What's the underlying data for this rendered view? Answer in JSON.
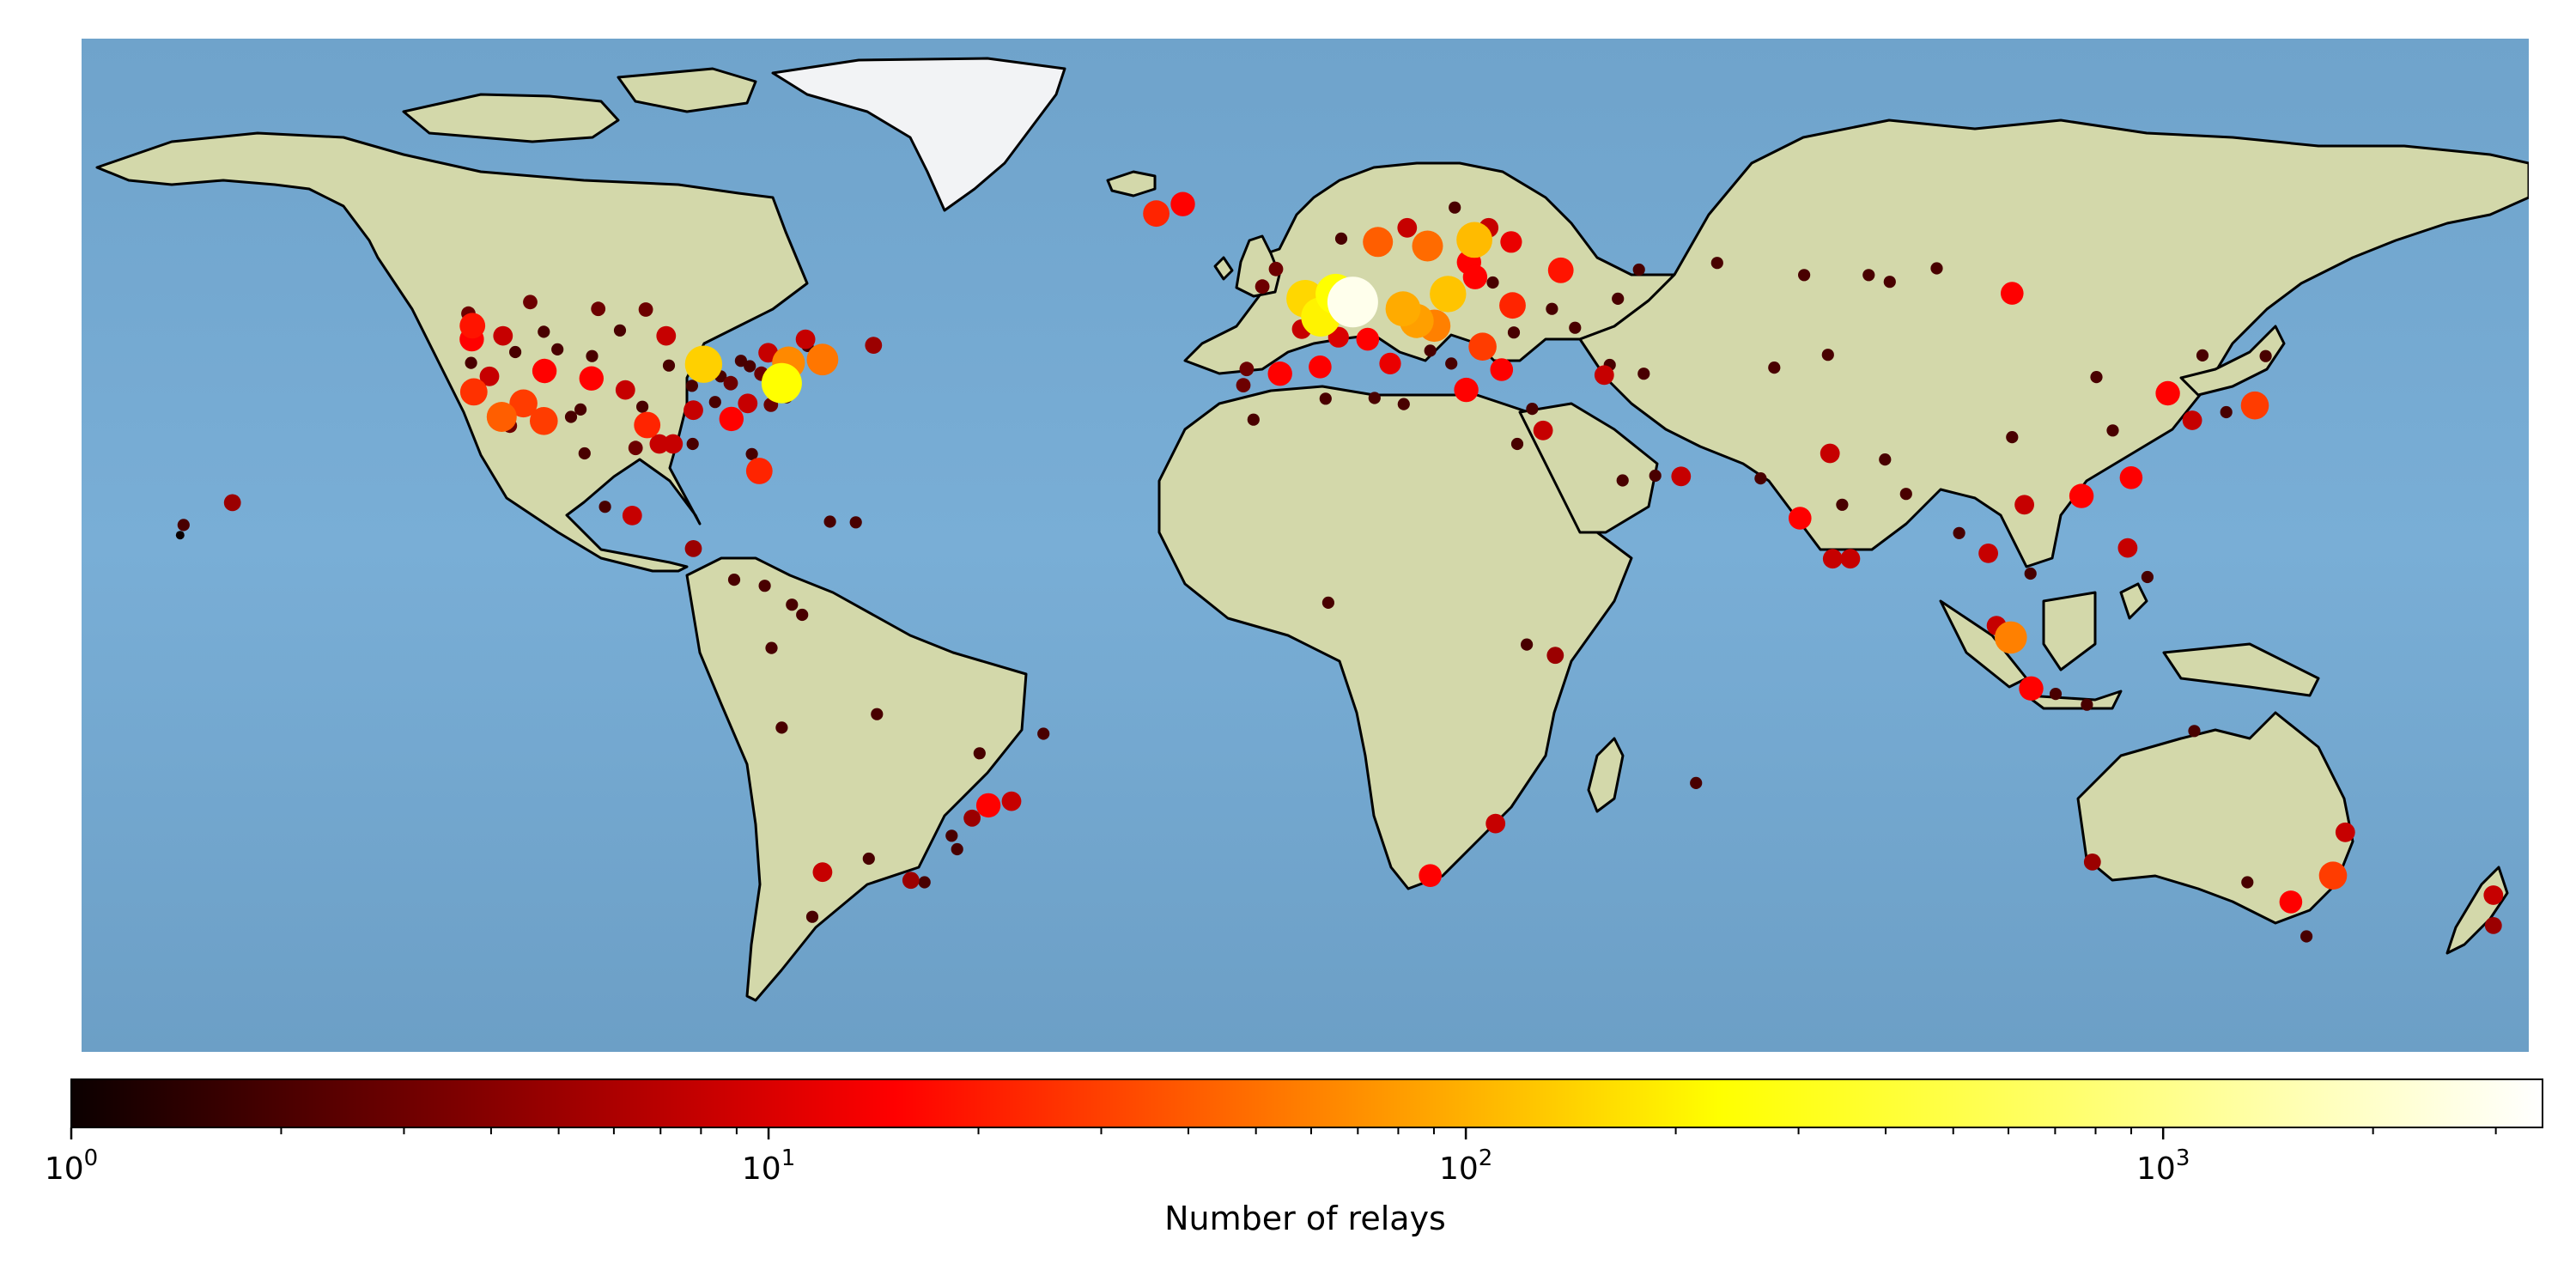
{
  "chart_data": {
    "type": "scatter",
    "title": "",
    "projection": "plate-carree",
    "extent": {
      "lon": [
        -180,
        180
      ],
      "lat": [
        -60,
        90
      ]
    },
    "colormap": "hot",
    "color_scale": "log",
    "colorbar": {
      "label": "Number of relays",
      "range": [
        1,
        3500
      ],
      "ticks": [
        {
          "value": 1,
          "base": "10",
          "exp": "0"
        },
        {
          "value": 10,
          "base": "10",
          "exp": "1"
        },
        {
          "value": 100,
          "base": "10",
          "exp": "2"
        },
        {
          "value": 1000,
          "base": "10",
          "exp": "3"
        }
      ]
    },
    "points": [
      {
        "lon": 7,
        "lat": 51,
        "relays": 3000
      },
      {
        "lon": 4.5,
        "lat": 52.2,
        "relays": 420
      },
      {
        "lon": 2.3,
        "lat": 48.8,
        "relays": 350
      },
      {
        "lon": 0,
        "lat": 51.5,
        "relays": 250
      },
      {
        "lon": -77,
        "lat": 39,
        "relays": 420
      },
      {
        "lon": -88.5,
        "lat": 41.8,
        "relays": 230
      },
      {
        "lon": -76,
        "lat": 42,
        "relays": 100
      },
      {
        "lon": -71,
        "lat": 42.5,
        "relays": 80
      },
      {
        "lon": 18,
        "lat": 59.3,
        "relays": 70
      },
      {
        "lon": 10.7,
        "lat": 59.9,
        "relays": 60
      },
      {
        "lon": 24.9,
        "lat": 60.2,
        "relays": 180
      },
      {
        "lon": 21,
        "lat": 52.2,
        "relays": 200
      },
      {
        "lon": 14.4,
        "lat": 50,
        "relays": 150
      },
      {
        "lon": 16.4,
        "lat": 48.2,
        "relays": 130
      },
      {
        "lon": 19,
        "lat": 47.5,
        "relays": 90
      },
      {
        "lon": 26.1,
        "lat": 44.4,
        "relays": 40
      },
      {
        "lon": 30.5,
        "lat": 50.5,
        "relays": 30
      },
      {
        "lon": 37.6,
        "lat": 55.7,
        "relays": 25
      },
      {
        "lon": 103.8,
        "lat": 1.35,
        "relays": 90
      },
      {
        "lon": -118.2,
        "lat": 34,
        "relays": 60
      },
      {
        "lon": -122.3,
        "lat": 37.7,
        "relays": 35
      },
      {
        "lon": -122.5,
        "lat": 47.5,
        "relays": 25
      },
      {
        "lon": -122.6,
        "lat": 45.5,
        "relays": 20
      },
      {
        "lon": -115,
        "lat": 36,
        "relays": 40
      },
      {
        "lon": -112,
        "lat": 33.4,
        "relays": 40
      },
      {
        "lon": -96.8,
        "lat": 32.8,
        "relays": 30
      },
      {
        "lon": -80.3,
        "lat": 26,
        "relays": 30
      },
      {
        "lon": -84.4,
        "lat": 33.7,
        "relays": 20
      },
      {
        "lon": -105,
        "lat": 39.7,
        "relays": 20
      },
      {
        "lon": -111.9,
        "lat": 40.8,
        "relays": 20
      },
      {
        "lon": -21.9,
        "lat": 64.1,
        "relays": 30
      },
      {
        "lon": -18,
        "lat": 65.5,
        "relays": 20
      },
      {
        "lon": 24.1,
        "lat": 56.9,
        "relays": 20
      },
      {
        "lon": 25,
        "lat": 54.7,
        "relays": 20
      },
      {
        "lon": -3.7,
        "lat": 40.4,
        "relays": 20
      },
      {
        "lon": 2.2,
        "lat": 41.4,
        "relays": 15
      },
      {
        "lon": 12.5,
        "lat": 41.9,
        "relays": 12
      },
      {
        "lon": 9.2,
        "lat": 45.5,
        "relays": 15
      },
      {
        "lon": 23.7,
        "lat": 38,
        "relays": 20
      },
      {
        "lon": 139.7,
        "lat": 35.7,
        "relays": 40
      },
      {
        "lon": 126.9,
        "lat": 37.5,
        "relays": 20
      },
      {
        "lon": 114.2,
        "lat": 22.3,
        "relays": 20
      },
      {
        "lon": 121.5,
        "lat": 25,
        "relays": 15
      },
      {
        "lon": 106.8,
        "lat": -6.2,
        "relays": 20
      },
      {
        "lon": 151.2,
        "lat": -33.9,
        "relays": 40
      },
      {
        "lon": 145,
        "lat": -37.8,
        "relays": 15
      },
      {
        "lon": -46.6,
        "lat": -23.5,
        "relays": 20
      },
      {
        "lon": 18.4,
        "lat": -33.9,
        "relays": 15
      },
      {
        "lon": 72.8,
        "lat": 19,
        "relays": 15
      },
      {
        "lon": 104,
        "lat": 52.3,
        "relays": 15
      },
      {
        "lon": 28.9,
        "lat": 41,
        "relays": 15
      },
      {
        "lon": 30.3,
        "lat": 59.9,
        "relays": 12
      },
      {
        "lon": 4.9,
        "lat": 45.8,
        "relays": 10
      },
      {
        "lon": -0.5,
        "lat": 47,
        "relays": 8
      },
      {
        "lon": 15,
        "lat": 62,
        "relays": 8
      },
      {
        "lon": 27,
        "lat": 62,
        "relays": 8
      },
      {
        "lon": -94,
        "lat": 46,
        "relays": 8
      },
      {
        "lon": -95,
        "lat": 30,
        "relays": 8
      },
      {
        "lon": -90,
        "lat": 35,
        "relays": 8
      },
      {
        "lon": -100,
        "lat": 38,
        "relays": 8
      },
      {
        "lon": -118,
        "lat": 46,
        "relays": 8
      },
      {
        "lon": -120,
        "lat": 40,
        "relays": 8
      },
      {
        "lon": -82,
        "lat": 36,
        "relays": 8
      },
      {
        "lon": -93,
        "lat": 30,
        "relays": 8
      },
      {
        "lon": -99,
        "lat": 19.4,
        "relays": 8
      },
      {
        "lon": -90,
        "lat": 14.5,
        "relays": 5
      },
      {
        "lon": -79,
        "lat": 43.5,
        "relays": 8
      },
      {
        "lon": -73.5,
        "lat": 45.5,
        "relays": 8
      },
      {
        "lon": -63.5,
        "lat": 44.6,
        "relays": 5
      },
      {
        "lon": -71,
        "lat": -33.4,
        "relays": 8
      },
      {
        "lon": -58,
        "lat": -34.6,
        "relays": 5
      },
      {
        "lon": -43.2,
        "lat": -22.9,
        "relays": 8
      },
      {
        "lon": -49,
        "lat": -25.4,
        "relays": 5
      },
      {
        "lon": 28,
        "lat": -26.2,
        "relays": 8
      },
      {
        "lon": 36.8,
        "lat": -1.3,
        "relays": 5
      },
      {
        "lon": 35,
        "lat": 32,
        "relays": 8
      },
      {
        "lon": 44,
        "lat": 40.2,
        "relays": 8
      },
      {
        "lon": 55.3,
        "lat": 25.2,
        "relays": 8
      },
      {
        "lon": 77.2,
        "lat": 28.6,
        "relays": 8
      },
      {
        "lon": 80.2,
        "lat": 13,
        "relays": 8
      },
      {
        "lon": 77.6,
        "lat": 13,
        "relays": 8
      },
      {
        "lon": 100.5,
        "lat": 13.8,
        "relays": 8
      },
      {
        "lon": 105.8,
        "lat": 21,
        "relays": 8
      },
      {
        "lon": 121,
        "lat": 14.6,
        "relays": 8
      },
      {
        "lon": 130.5,
        "lat": 33.5,
        "relays": 8
      },
      {
        "lon": 101.7,
        "lat": 3.1,
        "relays": 8
      },
      {
        "lon": 115.8,
        "lat": -31.9,
        "relays": 5
      },
      {
        "lon": 153,
        "lat": -27.5,
        "relays": 8
      },
      {
        "lon": 174.8,
        "lat": -36.8,
        "relays": 8
      },
      {
        "lon": 174.8,
        "lat": -41.3,
        "relays": 5
      },
      {
        "lon": -157.8,
        "lat": 21.3,
        "relays": 5
      },
      {
        "lon": -123.1,
        "lat": 49.3,
        "relays": 3
      },
      {
        "lon": -114,
        "lat": 51,
        "relays": 3
      },
      {
        "lon": -104,
        "lat": 50,
        "relays": 3
      },
      {
        "lon": -97,
        "lat": 49.9,
        "relays": 3
      },
      {
        "lon": -110,
        "lat": 44,
        "relays": 2
      },
      {
        "lon": -108,
        "lat": 34,
        "relays": 2
      },
      {
        "lon": -97.5,
        "lat": 35.5,
        "relays": 2
      },
      {
        "lon": -86,
        "lat": 40,
        "relays": 2
      },
      {
        "lon": -84.5,
        "lat": 39,
        "relays": 3
      },
      {
        "lon": -86.8,
        "lat": 36.2,
        "relays": 2
      },
      {
        "lon": -83,
        "lat": 42.3,
        "relays": 2
      },
      {
        "lon": -80,
        "lat": 40.4,
        "relays": 3
      },
      {
        "lon": -81.7,
        "lat": 41.5,
        "relays": 2
      },
      {
        "lon": -78.6,
        "lat": 35.8,
        "relays": 3
      },
      {
        "lon": -76.3,
        "lat": 36.9,
        "relays": 2
      },
      {
        "lon": -73.2,
        "lat": 44.5,
        "relays": 2
      },
      {
        "lon": -104.9,
        "lat": 43,
        "relays": 2
      },
      {
        "lon": -117,
        "lat": 32.7,
        "relays": 3
      },
      {
        "lon": -90.2,
        "lat": 38.6,
        "relays": 2
      },
      {
        "lon": -90.1,
        "lat": 30,
        "relays": 2
      },
      {
        "lon": -81.4,
        "lat": 28.5,
        "relays": 2
      },
      {
        "lon": -122.7,
        "lat": 42,
        "relays": 2
      },
      {
        "lon": -116.2,
        "lat": 43.6,
        "relays": 2
      },
      {
        "lon": -106.6,
        "lat": 35.1,
        "relays": 2
      },
      {
        "lon": -89.4,
        "lat": 43.1,
        "relays": 2
      },
      {
        "lon": -93.6,
        "lat": 41.6,
        "relays": 2
      },
      {
        "lon": -112,
        "lat": 46.6,
        "relays": 2
      },
      {
        "lon": -100.8,
        "lat": 46.8,
        "relays": 2
      },
      {
        "lon": -97,
        "lat": 32,
        "relays": 2
      },
      {
        "lon": -98.5,
        "lat": 29.4,
        "relays": 3
      },
      {
        "lon": -106,
        "lat": 28.6,
        "relays": 2
      },
      {
        "lon": -103,
        "lat": 20.7,
        "relays": 2
      },
      {
        "lon": -84,
        "lat": 9.9,
        "relays": 2
      },
      {
        "lon": -75.5,
        "lat": 6.2,
        "relays": 2
      },
      {
        "lon": -74,
        "lat": 4.7,
        "relays": 2
      },
      {
        "lon": -79.5,
        "lat": 9,
        "relays": 2
      },
      {
        "lon": -78.5,
        "lat": -0.2,
        "relays": 2
      },
      {
        "lon": -77,
        "lat": -12,
        "relays": 2
      },
      {
        "lon": -56,
        "lat": -34.9,
        "relays": 2
      },
      {
        "lon": -64.2,
        "lat": -31.4,
        "relays": 2
      },
      {
        "lon": -72.5,
        "lat": -40,
        "relays": 2
      },
      {
        "lon": -63,
        "lat": -10,
        "relays": 2
      },
      {
        "lon": -47.9,
        "lat": -15.8,
        "relays": 2
      },
      {
        "lon": -38.5,
        "lat": -12.9,
        "relays": 2
      },
      {
        "lon": -51.2,
        "lat": -30,
        "relays": 2
      },
      {
        "lon": -52,
        "lat": -28,
        "relays": 2
      },
      {
        "lon": 3.4,
        "lat": 6.5,
        "relays": 2
      },
      {
        "lon": 32.6,
        "lat": 0.3,
        "relays": 2
      },
      {
        "lon": 57.5,
        "lat": -20.2,
        "relays": 2
      },
      {
        "lon": 31.2,
        "lat": 30,
        "relays": 2
      },
      {
        "lon": 46.7,
        "lat": 24.6,
        "relays": 2
      },
      {
        "lon": 51.5,
        "lat": 25.3,
        "relays": 2
      },
      {
        "lon": 69,
        "lat": 41.3,
        "relays": 2
      },
      {
        "lon": 76.9,
        "lat": 43.2,
        "relays": 2
      },
      {
        "lon": 82.9,
        "lat": 55,
        "relays": 2
      },
      {
        "lon": 73.4,
        "lat": 55,
        "relays": 2
      },
      {
        "lon": 86,
        "lat": 54,
        "relays": 2
      },
      {
        "lon": 92.9,
        "lat": 56,
        "relays": 2
      },
      {
        "lon": 104,
        "lat": 31,
        "relays": 2
      },
      {
        "lon": 116.4,
        "lat": 39.9,
        "relays": 2
      },
      {
        "lon": 118.8,
        "lat": 32,
        "relays": 2
      },
      {
        "lon": 88.4,
        "lat": 22.6,
        "relays": 2
      },
      {
        "lon": 85.3,
        "lat": 27.7,
        "relays": 2
      },
      {
        "lon": 67,
        "lat": 24.9,
        "relays": 2
      },
      {
        "lon": 79,
        "lat": 21,
        "relays": 2
      },
      {
        "lon": 96.2,
        "lat": 16.8,
        "relays": 2
      },
      {
        "lon": 106.7,
        "lat": 10.8,
        "relays": 2
      },
      {
        "lon": 110.4,
        "lat": -7,
        "relays": 2
      },
      {
        "lon": 123.9,
        "lat": 10.3,
        "relays": 2
      },
      {
        "lon": 115,
        "lat": -8.6,
        "relays": 2
      },
      {
        "lon": 138.6,
        "lat": -34.9,
        "relays": 2
      },
      {
        "lon": 147.3,
        "lat": -42.9,
        "relays": 2
      },
      {
        "lon": 130.8,
        "lat": -12.5,
        "relays": 2
      },
      {
        "lon": 132,
        "lat": 43.1,
        "relays": 2
      },
      {
        "lon": 141.3,
        "lat": 43,
        "relays": 2
      },
      {
        "lon": 135.5,
        "lat": 34.7,
        "relays": 2
      },
      {
        "lon": 49.8,
        "lat": 40.4,
        "relays": 2
      },
      {
        "lon": 44.8,
        "lat": 41.7,
        "relays": 2
      },
      {
        "lon": 39.7,
        "lat": 47.2,
        "relays": 2
      },
      {
        "lon": 49.1,
        "lat": 55.8,
        "relays": 2
      },
      {
        "lon": 60.6,
        "lat": 56.8,
        "relays": 2
      },
      {
        "lon": 27.6,
        "lat": 53.9,
        "relays": 2
      },
      {
        "lon": 22,
        "lat": 65,
        "relays": 2
      },
      {
        "lon": 5.3,
        "lat": 60.4,
        "relays": 2
      },
      {
        "lon": -8.6,
        "lat": 41.1,
        "relays": 3
      },
      {
        "lon": -9.1,
        "lat": 38.7,
        "relays": 3
      },
      {
        "lon": -6.3,
        "lat": 53.3,
        "relays": 3
      },
      {
        "lon": -4.3,
        "lat": 55.9,
        "relays": 3
      },
      {
        "lon": -165,
        "lat": 18,
        "relays": 2
      },
      {
        "lon": -165.5,
        "lat": 16.5,
        "relays": 1
      },
      {
        "lon": -69.9,
        "lat": 18.5,
        "relays": 2
      },
      {
        "lon": -66.1,
        "lat": 18.4,
        "relays": 2
      },
      {
        "lon": 14.5,
        "lat": 35.9,
        "relays": 2
      },
      {
        "lon": 10.2,
        "lat": 36.8,
        "relays": 2
      },
      {
        "lon": 3,
        "lat": 36.7,
        "relays": 2
      },
      {
        "lon": -7.6,
        "lat": 33.6,
        "relays": 2
      },
      {
        "lon": 33.4,
        "lat": 35.2,
        "relays": 2
      },
      {
        "lon": 21.5,
        "lat": 41.9,
        "relays": 2
      },
      {
        "lon": 18.4,
        "lat": 43.8,
        "relays": 2
      },
      {
        "lon": 46,
        "lat": 51.5,
        "relays": 2
      },
      {
        "lon": 36.3,
        "lat": 50,
        "relays": 2
      },
      {
        "lon": 30.7,
        "lat": 46.5,
        "relays": 2
      }
    ]
  }
}
